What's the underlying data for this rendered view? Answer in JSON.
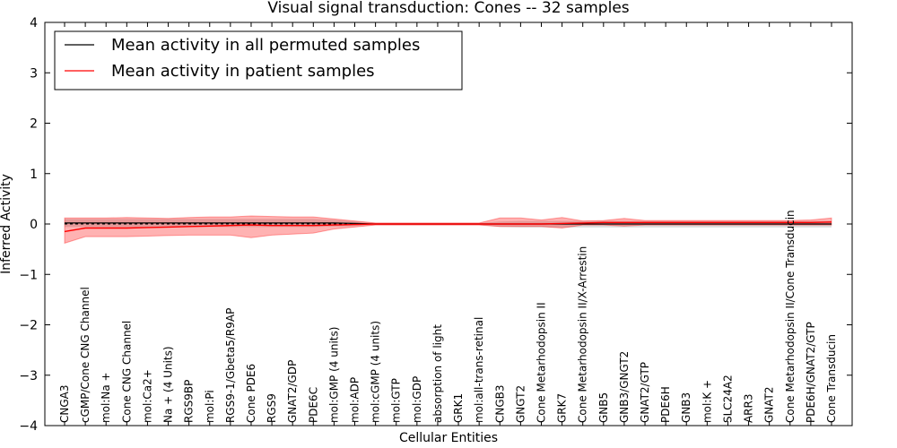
{
  "chart_data": {
    "type": "line",
    "title": "Visual signal transduction: Cones -- 32 samples",
    "xlabel": "Cellular Entities",
    "ylabel": "Inferred Activity",
    "ylim": [
      -4,
      4
    ],
    "yticks": [
      -4,
      -3,
      -2,
      -1,
      0,
      1,
      2,
      3,
      4
    ],
    "ytick_labels": [
      "−4",
      "−3",
      "−2",
      "−1",
      "0",
      "1",
      "2",
      "3",
      "4"
    ],
    "grid": false,
    "legend_position": "top-left",
    "colors": {
      "permuted": "#000000",
      "patient": "#ff0000",
      "patient_band": "#ff0000",
      "permuted_band": "#b0b0b0"
    },
    "categories": [
      "CNGA3",
      "cGMP/Cone CNG Channel",
      "mol:Na +",
      "Cone CNG Channel",
      "mol:Ca2+",
      "Na + (4 Units)",
      "RGS9BP",
      "mol:Pi",
      "RGS9-1/Gbeta5/R9AP",
      "Cone PDE6",
      "RGS9",
      "GNAT2/GDP",
      "PDE6C",
      "mol:GMP (4 units)",
      "mol:ADP",
      "mol:cGMP (4 units)",
      "mol:GTP",
      "mol:GDP",
      "absorption of light",
      "GRK1",
      "mol:all-trans-retinal",
      "CNGB3",
      "GNGT2",
      "Cone Metarhodopsin II",
      "GRK7",
      "Cone Metarhodopsin II/X-Arrestin",
      "GNB5",
      "GNB3/GNGT2",
      "GNAT2/GTP",
      "PDE6H",
      "GNB3",
      "mol:K +",
      "SLC24A2",
      "ARR3",
      "GNAT2",
      "Cone Metarhodopsin II/Cone Transducin",
      "PDE6H/GNAT2/GTP",
      "Cone Transducin"
    ],
    "series": [
      {
        "name": "Mean activity in all permuted samples",
        "values": [
          0.02,
          0.02,
          0.02,
          0.02,
          0.02,
          0.02,
          0.02,
          0.02,
          0.02,
          0.02,
          0.02,
          0.02,
          0.02,
          0.02,
          0.01,
          0.0,
          0.0,
          0.0,
          0.0,
          0.0,
          0.0,
          0.0,
          0.0,
          0.0,
          0.0,
          0.0,
          0.0,
          0.0,
          0.0,
          0.0,
          0.0,
          0.0,
          0.0,
          0.0,
          0.0,
          0.0,
          0.0,
          0.0
        ],
        "band_upper": [
          0.1,
          0.1,
          0.1,
          0.1,
          0.1,
          0.1,
          0.1,
          0.1,
          0.1,
          0.1,
          0.1,
          0.1,
          0.1,
          0.08,
          0.05,
          0.02,
          0.02,
          0.02,
          0.02,
          0.02,
          0.02,
          0.05,
          0.06,
          0.06,
          0.06,
          0.06,
          0.06,
          0.06,
          0.06,
          0.06,
          0.06,
          0.06,
          0.06,
          0.06,
          0.06,
          0.06,
          0.06,
          0.06
        ],
        "band_lower": [
          -0.06,
          -0.06,
          -0.06,
          -0.06,
          -0.06,
          -0.06,
          -0.06,
          -0.06,
          -0.06,
          -0.06,
          -0.06,
          -0.06,
          -0.06,
          -0.05,
          -0.04,
          -0.02,
          -0.02,
          -0.02,
          -0.02,
          -0.02,
          -0.02,
          -0.06,
          -0.07,
          -0.07,
          -0.07,
          -0.07,
          -0.07,
          -0.07,
          -0.07,
          -0.07,
          -0.07,
          -0.07,
          -0.07,
          -0.07,
          -0.07,
          -0.07,
          -0.07,
          -0.07
        ]
      },
      {
        "name": "Mean activity in patient samples",
        "values": [
          -0.15,
          -0.08,
          -0.08,
          -0.08,
          -0.07,
          -0.06,
          -0.05,
          -0.04,
          -0.03,
          -0.02,
          -0.03,
          -0.03,
          -0.03,
          -0.02,
          -0.01,
          0.0,
          0.0,
          0.0,
          0.0,
          0.0,
          0.0,
          0.0,
          0.0,
          0.0,
          0.01,
          0.02,
          0.03,
          0.03,
          0.03,
          0.03,
          0.03,
          0.03,
          0.03,
          0.03,
          0.03,
          0.03,
          0.03,
          0.04
        ],
        "band_upper": [
          0.12,
          0.12,
          0.12,
          0.13,
          0.12,
          0.11,
          0.13,
          0.14,
          0.14,
          0.16,
          0.15,
          0.14,
          0.14,
          0.1,
          0.06,
          0.02,
          0.02,
          0.02,
          0.02,
          0.02,
          0.02,
          0.12,
          0.12,
          0.08,
          0.13,
          0.06,
          0.07,
          0.11,
          0.07,
          0.07,
          0.07,
          0.07,
          0.07,
          0.07,
          0.07,
          0.07,
          0.08,
          0.12
        ],
        "band_lower": [
          -0.38,
          -0.25,
          -0.25,
          -0.25,
          -0.24,
          -0.23,
          -0.22,
          -0.22,
          -0.22,
          -0.27,
          -0.22,
          -0.2,
          -0.18,
          -0.1,
          -0.06,
          -0.02,
          -0.02,
          -0.02,
          -0.02,
          -0.02,
          -0.02,
          -0.05,
          -0.05,
          -0.05,
          -0.08,
          -0.02,
          -0.02,
          -0.04,
          -0.02,
          -0.02,
          -0.02,
          -0.02,
          -0.02,
          -0.02,
          -0.02,
          -0.02,
          -0.02,
          -0.02
        ]
      }
    ]
  }
}
